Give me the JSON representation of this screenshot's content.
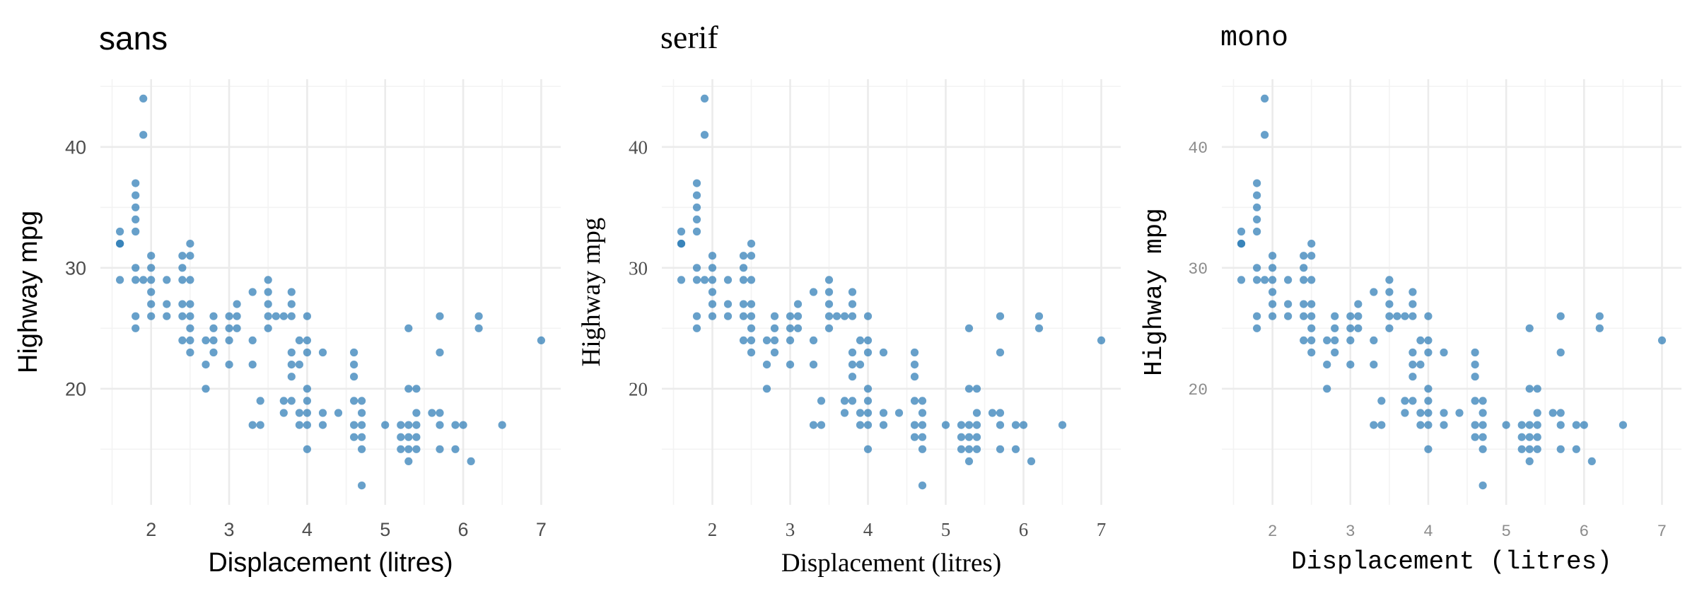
{
  "colors": {
    "point": "#2777b4",
    "grid": "#ebebeb",
    "tick_sans": "#4d4d4d",
    "tick_mono": "#8c8c8c"
  },
  "chart_data": [
    {
      "type": "scatter",
      "title": "sans",
      "font": "sans",
      "xlabel": "Displacement (litres)",
      "ylabel": "Highway mpg",
      "xlim": [
        1.35,
        7.25
      ],
      "ylim": [
        10.4,
        45.6
      ],
      "xticks": [
        2,
        3,
        4,
        5,
        6,
        7
      ],
      "yticks": [
        20,
        30,
        40
      ],
      "grid": true,
      "legend": "none",
      "series": "mpg"
    },
    {
      "type": "scatter",
      "title": "serif",
      "font": "serif",
      "xlabel": "Displacement (litres)",
      "ylabel": "Highway mpg",
      "xlim": [
        1.35,
        7.25
      ],
      "ylim": [
        10.4,
        45.6
      ],
      "xticks": [
        2,
        3,
        4,
        5,
        6,
        7
      ],
      "yticks": [
        20,
        30,
        40
      ],
      "grid": true,
      "legend": "none",
      "series": "mpg"
    },
    {
      "type": "scatter",
      "title": "mono",
      "font": "mono",
      "xlabel": "Displacement (litres)",
      "ylabel": "Highway mpg",
      "xlim": [
        1.35,
        7.25
      ],
      "ylim": [
        10.4,
        45.6
      ],
      "xticks": [
        2,
        3,
        4,
        5,
        6,
        7
      ],
      "yticks": [
        20,
        30,
        40
      ],
      "grid": true,
      "legend": "none",
      "series": "mpg"
    }
  ],
  "points": [
    [
      1.6,
      33
    ],
    [
      1.6,
      32
    ],
    [
      1.6,
      32
    ],
    [
      1.6,
      29
    ],
    [
      1.8,
      37
    ],
    [
      1.8,
      36
    ],
    [
      1.8,
      35
    ],
    [
      1.8,
      34
    ],
    [
      1.8,
      33
    ],
    [
      1.8,
      30
    ],
    [
      1.8,
      29
    ],
    [
      1.8,
      26
    ],
    [
      1.8,
      25
    ],
    [
      1.9,
      44
    ],
    [
      1.9,
      41
    ],
    [
      1.9,
      29
    ],
    [
      2.0,
      31
    ],
    [
      2.0,
      30
    ],
    [
      2.0,
      29
    ],
    [
      2.0,
      28
    ],
    [
      2.0,
      27
    ],
    [
      2.0,
      26
    ],
    [
      2.2,
      29
    ],
    [
      2.2,
      27
    ],
    [
      2.2,
      26
    ],
    [
      2.4,
      31
    ],
    [
      2.4,
      30
    ],
    [
      2.4,
      29
    ],
    [
      2.4,
      27
    ],
    [
      2.4,
      26
    ],
    [
      2.4,
      24
    ],
    [
      2.5,
      32
    ],
    [
      2.5,
      31
    ],
    [
      2.5,
      29
    ],
    [
      2.5,
      27
    ],
    [
      2.5,
      26
    ],
    [
      2.5,
      25
    ],
    [
      2.5,
      24
    ],
    [
      2.5,
      23
    ],
    [
      2.7,
      24
    ],
    [
      2.7,
      22
    ],
    [
      2.7,
      20
    ],
    [
      2.8,
      26
    ],
    [
      2.8,
      25
    ],
    [
      2.8,
      24
    ],
    [
      2.8,
      23
    ],
    [
      3.0,
      26
    ],
    [
      3.0,
      25
    ],
    [
      3.0,
      24
    ],
    [
      3.0,
      22
    ],
    [
      3.1,
      27
    ],
    [
      3.1,
      26
    ],
    [
      3.1,
      25
    ],
    [
      3.3,
      28
    ],
    [
      3.3,
      24
    ],
    [
      3.3,
      22
    ],
    [
      3.3,
      17
    ],
    [
      3.4,
      19
    ],
    [
      3.4,
      17
    ],
    [
      3.5,
      29
    ],
    [
      3.5,
      28
    ],
    [
      3.5,
      27
    ],
    [
      3.5,
      26
    ],
    [
      3.5,
      25
    ],
    [
      3.6,
      26
    ],
    [
      3.7,
      26
    ],
    [
      3.7,
      19
    ],
    [
      3.7,
      18
    ],
    [
      3.8,
      28
    ],
    [
      3.8,
      27
    ],
    [
      3.8,
      26
    ],
    [
      3.8,
      23
    ],
    [
      3.8,
      22
    ],
    [
      3.8,
      21
    ],
    [
      3.8,
      19
    ],
    [
      3.9,
      24
    ],
    [
      3.9,
      22
    ],
    [
      3.9,
      18
    ],
    [
      3.9,
      17
    ],
    [
      4.0,
      26
    ],
    [
      4.0,
      24
    ],
    [
      4.0,
      23
    ],
    [
      4.0,
      20
    ],
    [
      4.0,
      19
    ],
    [
      4.0,
      18
    ],
    [
      4.0,
      17
    ],
    [
      4.0,
      15
    ],
    [
      4.2,
      23
    ],
    [
      4.2,
      18
    ],
    [
      4.2,
      17
    ],
    [
      4.4,
      18
    ],
    [
      4.6,
      23
    ],
    [
      4.6,
      22
    ],
    [
      4.6,
      21
    ],
    [
      4.6,
      19
    ],
    [
      4.6,
      17
    ],
    [
      4.6,
      16
    ],
    [
      4.7,
      19
    ],
    [
      4.7,
      18
    ],
    [
      4.7,
      17
    ],
    [
      4.7,
      16
    ],
    [
      4.7,
      15
    ],
    [
      4.7,
      12
    ],
    [
      5.0,
      17
    ],
    [
      5.2,
      17
    ],
    [
      5.2,
      16
    ],
    [
      5.2,
      15
    ],
    [
      5.3,
      25
    ],
    [
      5.3,
      20
    ],
    [
      5.3,
      17
    ],
    [
      5.3,
      16
    ],
    [
      5.3,
      15
    ],
    [
      5.3,
      14
    ],
    [
      5.4,
      20
    ],
    [
      5.4,
      18
    ],
    [
      5.4,
      17
    ],
    [
      5.4,
      16
    ],
    [
      5.4,
      15
    ],
    [
      5.6,
      18
    ],
    [
      5.7,
      26
    ],
    [
      5.7,
      23
    ],
    [
      5.7,
      18
    ],
    [
      5.7,
      17
    ],
    [
      5.7,
      15
    ],
    [
      5.9,
      17
    ],
    [
      5.9,
      15
    ],
    [
      6.0,
      17
    ],
    [
      6.1,
      14
    ],
    [
      6.2,
      26
    ],
    [
      6.2,
      25
    ],
    [
      6.5,
      17
    ],
    [
      7.0,
      24
    ]
  ]
}
